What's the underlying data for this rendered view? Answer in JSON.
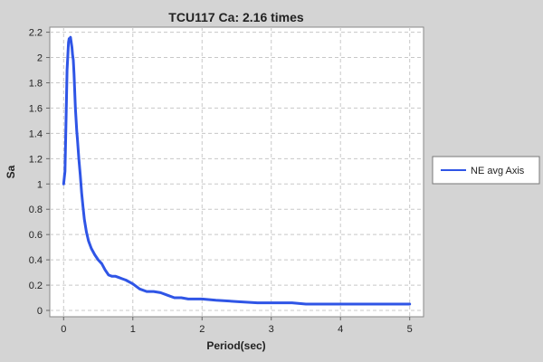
{
  "chart_data": {
    "type": "line",
    "title": "TCU117 Ca: 2.16 times",
    "xlabel": "Period(sec)",
    "ylabel": "Sa",
    "xlim": [
      -0.2,
      5.2
    ],
    "ylim": [
      -0.05,
      2.24
    ],
    "xticks": [
      0,
      1,
      2,
      3,
      4,
      5
    ],
    "yticks": [
      0,
      0.2,
      0.4,
      0.6,
      0.8,
      1,
      1.2,
      1.4,
      1.6,
      1.8,
      2,
      2.2
    ],
    "xtick_labels": [
      "0",
      "1",
      "2",
      "3",
      "4",
      "5"
    ],
    "ytick_labels": [
      "0",
      "0.2",
      "0.4",
      "0.6",
      "0.8",
      "1",
      "1.2",
      "1.4",
      "1.6",
      "1.8",
      "2",
      "2.2"
    ],
    "grid": true,
    "legend_position": "right",
    "series": [
      {
        "name": "NE avg Axis",
        "color": "#2f55e6",
        "x": [
          0,
          0.02,
          0.04,
          0.05,
          0.07,
          0.08,
          0.09,
          0.1,
          0.11,
          0.12,
          0.13,
          0.14,
          0.15,
          0.17,
          0.19,
          0.2,
          0.22,
          0.24,
          0.26,
          0.28,
          0.3,
          0.33,
          0.36,
          0.4,
          0.45,
          0.5,
          0.55,
          0.6,
          0.65,
          0.7,
          0.75,
          0.8,
          0.85,
          0.9,
          1.0,
          1.1,
          1.2,
          1.3,
          1.4,
          1.5,
          1.6,
          1.7,
          1.8,
          2.0,
          2.2,
          2.5,
          2.8,
          3.0,
          3.3,
          3.5,
          3.8,
          4.0,
          4.3,
          4.5,
          4.8,
          5.0
        ],
        "y": [
          1.0,
          1.1,
          1.65,
          1.9,
          2.12,
          2.15,
          2.14,
          2.16,
          2.12,
          2.08,
          2.02,
          1.98,
          1.87,
          1.6,
          1.42,
          1.35,
          1.2,
          1.07,
          0.93,
          0.82,
          0.72,
          0.62,
          0.55,
          0.49,
          0.44,
          0.4,
          0.37,
          0.32,
          0.28,
          0.27,
          0.27,
          0.26,
          0.25,
          0.24,
          0.21,
          0.17,
          0.15,
          0.15,
          0.14,
          0.12,
          0.1,
          0.1,
          0.09,
          0.09,
          0.08,
          0.07,
          0.06,
          0.06,
          0.06,
          0.05,
          0.05,
          0.05,
          0.05,
          0.05,
          0.05,
          0.05
        ]
      }
    ]
  }
}
